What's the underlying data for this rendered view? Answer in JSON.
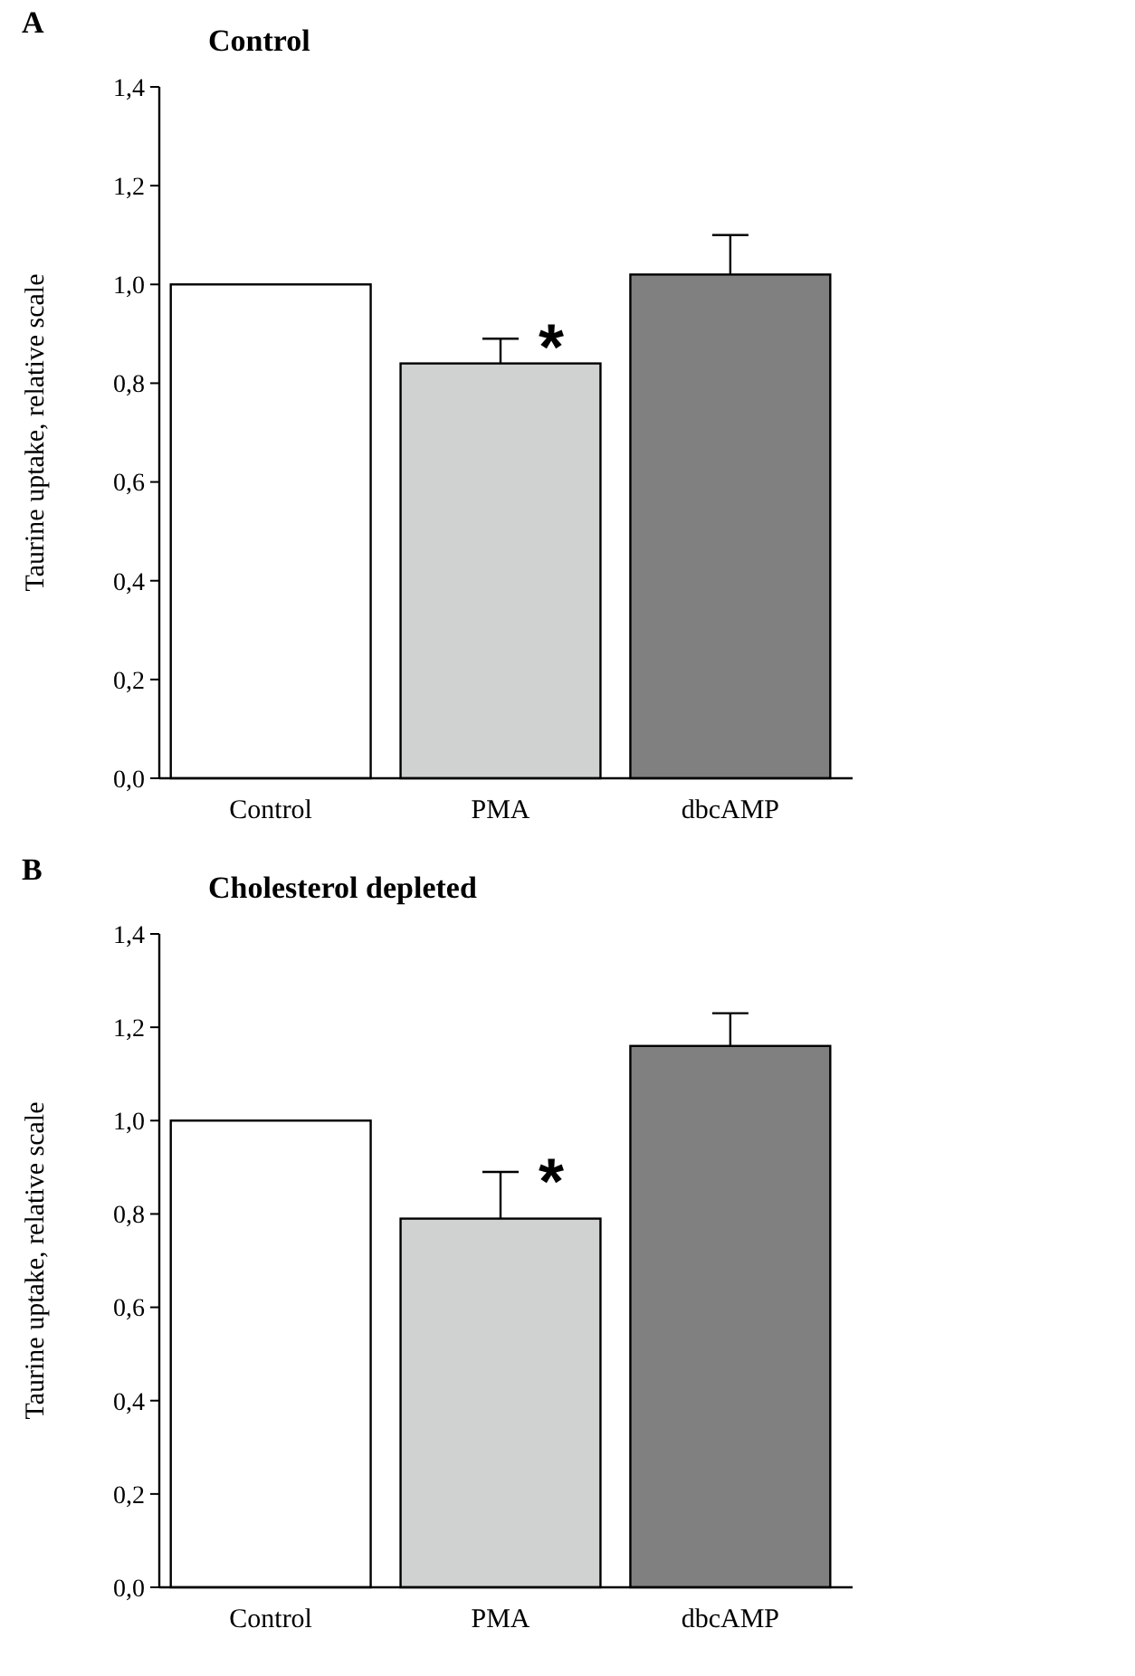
{
  "chart_data": [
    {
      "type": "bar",
      "title": "Control",
      "ylabel": "Taurine uptake, relative scale",
      "categories": [
        "Control",
        "PMA",
        "dbcAMP"
      ],
      "values": [
        1.0,
        0.84,
        1.02
      ],
      "errors": [
        null,
        [
          0.84,
          0.89
        ],
        [
          1.02,
          1.1
        ]
      ],
      "colors": [
        "#ffffff",
        "#d0d2d2",
        "#808080"
      ],
      "ylim": [
        0,
        1.4
      ],
      "yticks": [
        {
          "value": 0,
          "label": "0,0"
        },
        {
          "value": 0.2,
          "label": "0,2"
        },
        {
          "value": 0.4,
          "label": "0,4"
        },
        {
          "value": 0.6,
          "label": "0,6"
        },
        {
          "value": 0.8,
          "label": "0,8"
        },
        {
          "value": 1.0,
          "label": "1,0"
        },
        {
          "value": 1.2,
          "label": "1,2"
        },
        {
          "value": 1.4,
          "label": "1,4"
        }
      ],
      "grid": false,
      "annotations": [
        "A",
        "*"
      ]
    },
    {
      "type": "bar",
      "title": "Cholesterol depleted",
      "ylabel": "Taurine uptake, relative scale",
      "categories": [
        "Control",
        "PMA",
        "dbcAMP"
      ],
      "values": [
        1.0,
        0.79,
        1.16
      ],
      "errors": [
        null,
        [
          0.79,
          0.89
        ],
        [
          1.16,
          1.23
        ]
      ],
      "colors": [
        "#ffffff",
        "#d0d2d2",
        "#808080"
      ],
      "ylim": [
        0,
        1.4
      ],
      "yticks": [
        {
          "value": 0,
          "label": "0,0"
        },
        {
          "value": 0.2,
          "label": "0,2"
        },
        {
          "value": 0.4,
          "label": "0,4"
        },
        {
          "value": 0.6,
          "label": "0,6"
        },
        {
          "value": 0.8,
          "label": "0,8"
        },
        {
          "value": 1.0,
          "label": "1,0"
        },
        {
          "value": 1.2,
          "label": "1,2"
        },
        {
          "value": 1.4,
          "label": "1,4"
        }
      ],
      "grid": false,
      "annotations": [
        "B",
        "*"
      ]
    }
  ]
}
